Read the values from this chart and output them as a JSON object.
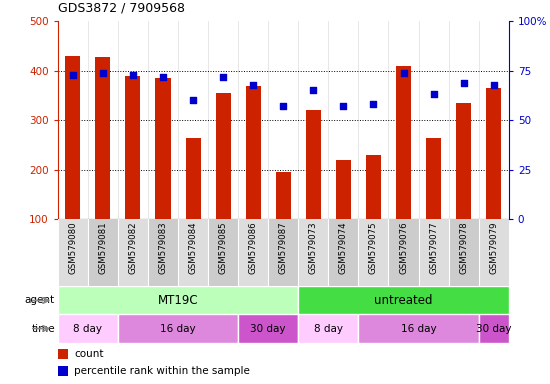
{
  "title": "GDS3872 / 7909568",
  "samples": [
    "GSM579080",
    "GSM579081",
    "GSM579082",
    "GSM579083",
    "GSM579084",
    "GSM579085",
    "GSM579086",
    "GSM579087",
    "GSM579073",
    "GSM579074",
    "GSM579075",
    "GSM579076",
    "GSM579077",
    "GSM579078",
    "GSM579079"
  ],
  "counts": [
    430,
    428,
    390,
    385,
    265,
    355,
    370,
    195,
    320,
    220,
    230,
    410,
    265,
    335,
    365
  ],
  "percentiles": [
    73,
    74,
    73,
    72,
    60,
    72,
    68,
    57,
    65,
    57,
    58,
    74,
    63,
    69,
    68
  ],
  "bar_color": "#cc2200",
  "dot_color": "#0000cc",
  "ylim_left": [
    100,
    500
  ],
  "yticks_left": [
    100,
    200,
    300,
    400,
    500
  ],
  "ytick_labels_left": [
    "100",
    "200",
    "300",
    "400",
    "500"
  ],
  "ylim_right": [
    0,
    100
  ],
  "yticks_right": [
    0,
    25,
    50,
    75,
    100
  ],
  "yticklabels_right": [
    "0",
    "25",
    "50",
    "75",
    "100%"
  ],
  "agent_groups": [
    {
      "label": "MT19C",
      "start": 0,
      "end": 7,
      "color": "#bbffbb"
    },
    {
      "label": "untreated",
      "start": 8,
      "end": 14,
      "color": "#44dd44"
    }
  ],
  "time_groups": [
    {
      "label": "8 day",
      "start": 0,
      "end": 1,
      "color": "#ffccff"
    },
    {
      "label": "16 day",
      "start": 2,
      "end": 5,
      "color": "#dd88dd"
    },
    {
      "label": "30 day",
      "start": 6,
      "end": 7,
      "color": "#cc55cc"
    },
    {
      "label": "8 day",
      "start": 8,
      "end": 9,
      "color": "#ffccff"
    },
    {
      "label": "16 day",
      "start": 10,
      "end": 13,
      "color": "#dd88dd"
    },
    {
      "label": "30 day",
      "start": 14,
      "end": 14,
      "color": "#cc55cc"
    }
  ],
  "col_colors": [
    "#dddddd",
    "#cccccc"
  ],
  "bar_baseline": 100,
  "bar_width": 0.5,
  "grid_lines": [
    200,
    300,
    400
  ],
  "legend_items": [
    {
      "color": "#cc2200",
      "label": "count"
    },
    {
      "color": "#0000cc",
      "label": "percentile rank within the sample"
    }
  ]
}
